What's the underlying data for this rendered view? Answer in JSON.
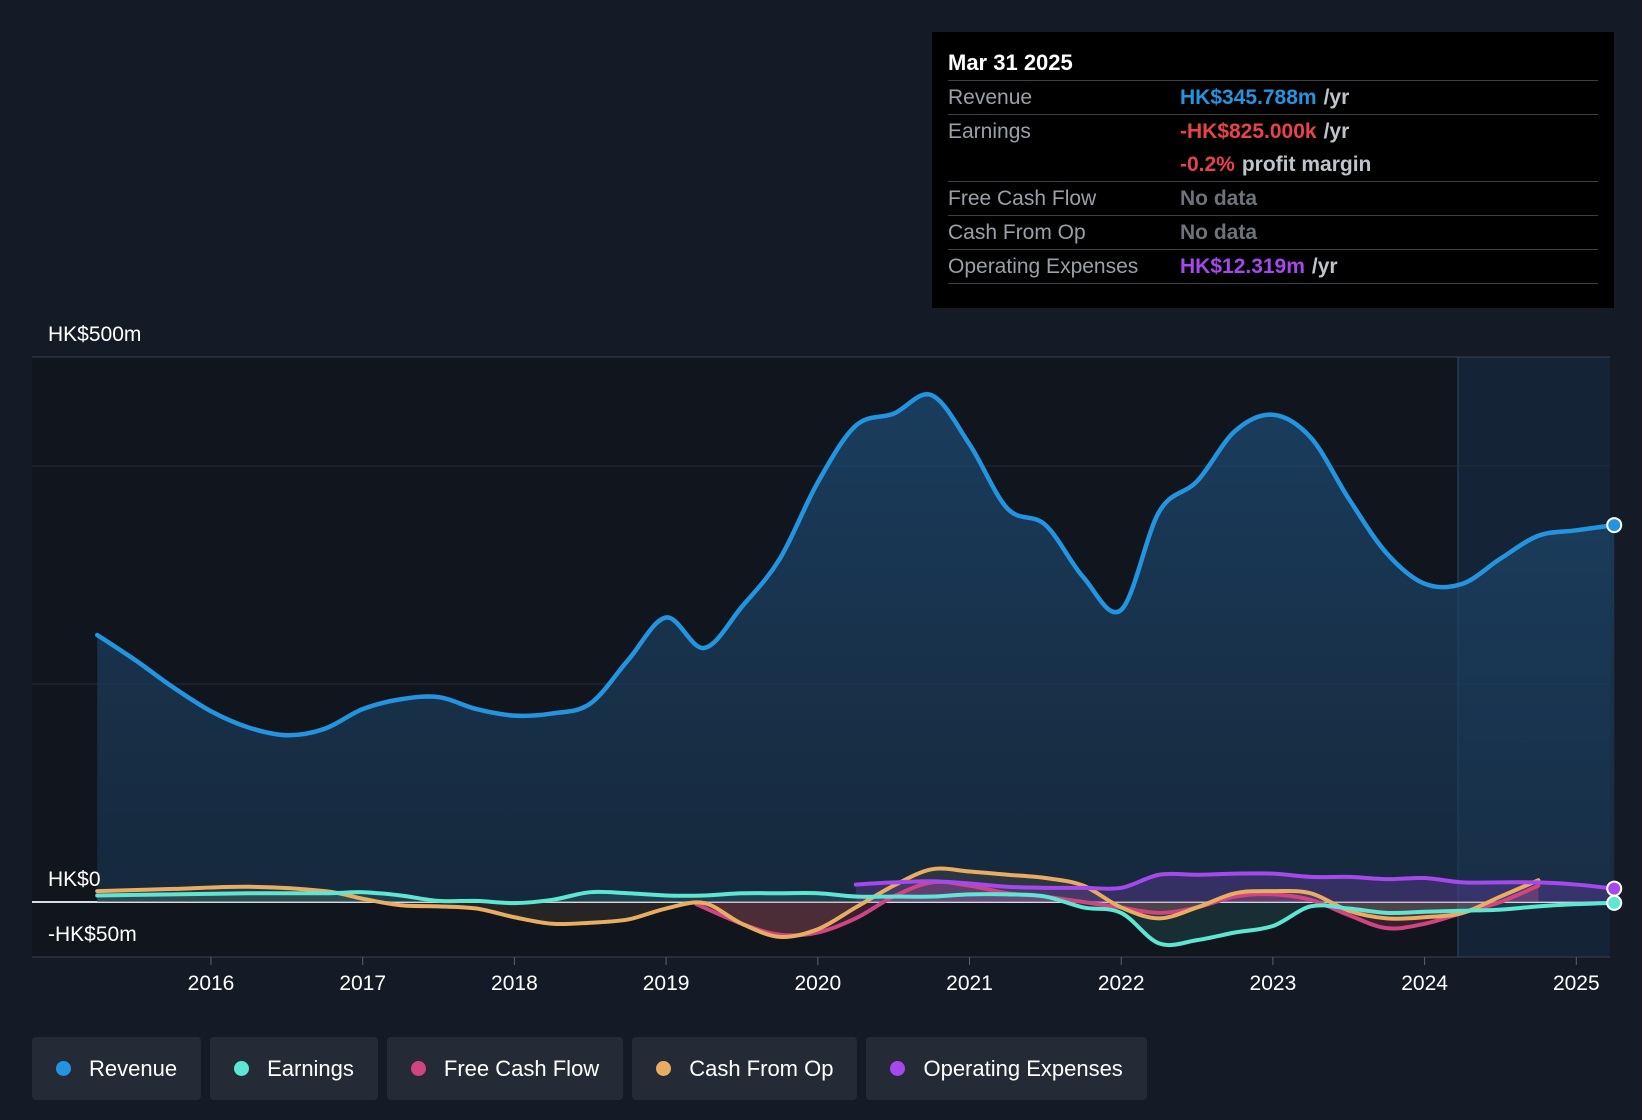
{
  "chart_data": {
    "type": "line",
    "x_ticks": [
      "2016",
      "2017",
      "2018",
      "2019",
      "2020",
      "2021",
      "2022",
      "2023",
      "2024",
      "2025"
    ],
    "y_labels": {
      "top": "HK$500m",
      "zero": "HK$0",
      "bottom": "-HK$50m"
    },
    "ylim": [
      -50,
      500
    ],
    "series": [
      {
        "name": "Revenue",
        "color": "#2394df",
        "points": [
          [
            2015.25,
            245
          ],
          [
            2015.5,
            222
          ],
          [
            2015.75,
            197
          ],
          [
            2016,
            175
          ],
          [
            2016.25,
            160
          ],
          [
            2016.5,
            153
          ],
          [
            2016.75,
            159
          ],
          [
            2017,
            177
          ],
          [
            2017.25,
            186
          ],
          [
            2017.5,
            188
          ],
          [
            2017.75,
            177
          ],
          [
            2018,
            171
          ],
          [
            2018.25,
            173
          ],
          [
            2018.5,
            182
          ],
          [
            2018.75,
            222
          ],
          [
            2019,
            261
          ],
          [
            2019.25,
            233
          ],
          [
            2019.5,
            271
          ],
          [
            2019.75,
            315
          ],
          [
            2020,
            385
          ],
          [
            2020.25,
            437
          ],
          [
            2020.5,
            448
          ],
          [
            2020.75,
            465
          ],
          [
            2021,
            420
          ],
          [
            2021.25,
            361
          ],
          [
            2021.5,
            346
          ],
          [
            2021.75,
            298
          ],
          [
            2022,
            268
          ],
          [
            2022.25,
            358
          ],
          [
            2022.5,
            386
          ],
          [
            2022.75,
            432
          ],
          [
            2023,
            447
          ],
          [
            2023.25,
            426
          ],
          [
            2023.5,
            370
          ],
          [
            2023.75,
            320
          ],
          [
            2024,
            292
          ],
          [
            2024.25,
            292
          ],
          [
            2024.5,
            315
          ],
          [
            2024.75,
            336
          ],
          [
            2025,
            341
          ],
          [
            2025.25,
            345.788
          ]
        ]
      },
      {
        "name": "Earnings",
        "color": "#5de6d2",
        "points": [
          [
            2015.25,
            6
          ],
          [
            2015.75,
            7
          ],
          [
            2016.25,
            8
          ],
          [
            2016.75,
            8
          ],
          [
            2017,
            9
          ],
          [
            2017.25,
            6
          ],
          [
            2017.5,
            1
          ],
          [
            2017.75,
            1
          ],
          [
            2018,
            -1
          ],
          [
            2018.25,
            2
          ],
          [
            2018.5,
            9
          ],
          [
            2018.75,
            8
          ],
          [
            2019,
            6
          ],
          [
            2019.25,
            6
          ],
          [
            2019.5,
            8
          ],
          [
            2019.75,
            8
          ],
          [
            2020,
            8
          ],
          [
            2020.25,
            5
          ],
          [
            2020.5,
            5
          ],
          [
            2020.75,
            5
          ],
          [
            2021,
            7
          ],
          [
            2021.25,
            7
          ],
          [
            2021.5,
            5
          ],
          [
            2021.75,
            -5
          ],
          [
            2022,
            -10
          ],
          [
            2022.25,
            -38
          ],
          [
            2022.5,
            -35
          ],
          [
            2022.75,
            -28
          ],
          [
            2023,
            -22
          ],
          [
            2023.25,
            -4
          ],
          [
            2023.5,
            -6
          ],
          [
            2023.75,
            -10
          ],
          [
            2024,
            -9
          ],
          [
            2024.25,
            -8
          ],
          [
            2024.5,
            -7
          ],
          [
            2024.75,
            -4
          ],
          [
            2025,
            -2
          ],
          [
            2025.25,
            -0.825
          ]
        ]
      },
      {
        "name": "Free Cash Flow",
        "color": "#cf4581",
        "points": [
          [
            2019.2,
            -2
          ],
          [
            2019.5,
            -20
          ],
          [
            2019.75,
            -30
          ],
          [
            2020,
            -28
          ],
          [
            2020.25,
            -15
          ],
          [
            2020.5,
            5
          ],
          [
            2020.75,
            18
          ],
          [
            2021,
            15
          ],
          [
            2021.25,
            8
          ],
          [
            2021.5,
            5
          ],
          [
            2021.75,
            0
          ],
          [
            2022,
            -5
          ],
          [
            2022.25,
            -10
          ],
          [
            2022.5,
            -5
          ],
          [
            2022.75,
            5
          ],
          [
            2023,
            7
          ],
          [
            2023.25,
            2
          ],
          [
            2023.5,
            -12
          ],
          [
            2023.75,
            -24
          ],
          [
            2024,
            -20
          ],
          [
            2024.25,
            -10
          ],
          [
            2024.5,
            0
          ],
          [
            2024.75,
            15
          ]
        ]
      },
      {
        "name": "Cash From Op",
        "color": "#e8ad62",
        "points": [
          [
            2015.25,
            10
          ],
          [
            2015.75,
            12
          ],
          [
            2016.25,
            14
          ],
          [
            2016.75,
            10
          ],
          [
            2017,
            3
          ],
          [
            2017.25,
            -3
          ],
          [
            2017.5,
            -4
          ],
          [
            2017.75,
            -6
          ],
          [
            2018,
            -14
          ],
          [
            2018.25,
            -20
          ],
          [
            2018.5,
            -19
          ],
          [
            2018.75,
            -16
          ],
          [
            2019,
            -6
          ],
          [
            2019.25,
            -1
          ],
          [
            2019.5,
            -20
          ],
          [
            2019.75,
            -32
          ],
          [
            2020,
            -25
          ],
          [
            2020.25,
            -5
          ],
          [
            2020.5,
            15
          ],
          [
            2020.75,
            30
          ],
          [
            2021,
            28
          ],
          [
            2021.25,
            25
          ],
          [
            2021.5,
            22
          ],
          [
            2021.75,
            15
          ],
          [
            2022,
            -5
          ],
          [
            2022.25,
            -15
          ],
          [
            2022.5,
            -5
          ],
          [
            2022.75,
            8
          ],
          [
            2023,
            10
          ],
          [
            2023.25,
            8
          ],
          [
            2023.5,
            -8
          ],
          [
            2023.75,
            -15
          ],
          [
            2024,
            -14
          ],
          [
            2024.25,
            -10
          ],
          [
            2024.5,
            5
          ],
          [
            2024.75,
            20
          ]
        ]
      },
      {
        "name": "Operating Expenses",
        "color": "#a548ec",
        "points": [
          [
            2020.25,
            16
          ],
          [
            2020.5,
            18
          ],
          [
            2020.75,
            19
          ],
          [
            2021,
            17
          ],
          [
            2021.25,
            14
          ],
          [
            2021.5,
            13
          ],
          [
            2021.75,
            13
          ],
          [
            2022,
            13
          ],
          [
            2022.25,
            25
          ],
          [
            2022.5,
            25
          ],
          [
            2022.75,
            26
          ],
          [
            2023,
            26
          ],
          [
            2023.25,
            23
          ],
          [
            2023.5,
            23
          ],
          [
            2023.75,
            21
          ],
          [
            2024,
            22
          ],
          [
            2024.25,
            18
          ],
          [
            2024.5,
            18
          ],
          [
            2024.75,
            18
          ],
          [
            2025,
            16
          ],
          [
            2025.25,
            12.319
          ]
        ]
      }
    ]
  },
  "tooltip": {
    "date": "Mar 31 2025",
    "rows": [
      {
        "label": "Revenue",
        "value": "HK$345.788m",
        "unit": "/yr",
        "color": "#2394df"
      },
      {
        "label": "Earnings",
        "value": "-HK$825.000k",
        "unit": "/yr",
        "color": "#e8434d"
      },
      {
        "label": "",
        "value": "-0.2%",
        "unit": "profit margin",
        "color": "#e8434d"
      },
      {
        "label": "Free Cash Flow",
        "value": "No data",
        "unit": "",
        "color": "#6d727b"
      },
      {
        "label": "Cash From Op",
        "value": "No data",
        "unit": "",
        "color": "#6d727b"
      },
      {
        "label": "Operating Expenses",
        "value": "HK$12.319m",
        "unit": "/yr",
        "color": "#a548ec"
      }
    ]
  },
  "legend": [
    {
      "label": "Revenue",
      "color": "#2394df"
    },
    {
      "label": "Earnings",
      "color": "#5de6d2"
    },
    {
      "label": "Free Cash Flow",
      "color": "#cf4581"
    },
    {
      "label": "Cash From Op",
      "color": "#e8ad62"
    },
    {
      "label": "Operating Expenses",
      "color": "#a548ec"
    }
  ]
}
